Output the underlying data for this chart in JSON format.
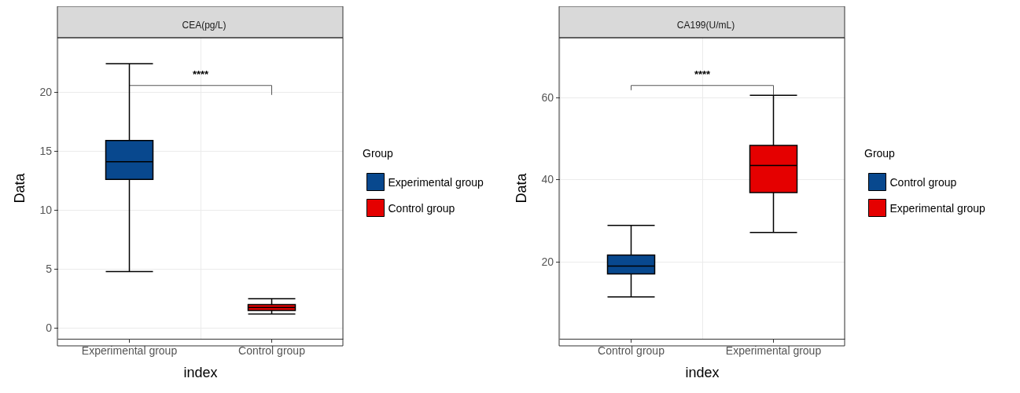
{
  "chart_data": [
    {
      "type": "box",
      "title": "CEA(pg/L)",
      "xlabel": "index",
      "ylabel": "Data",
      "legend_title": "Group",
      "legend": "right",
      "grid": true,
      "categories": [
        "Experimental group",
        "Control group"
      ],
      "ylim": [
        -0.9,
        24.6
      ],
      "yticks": [
        0,
        5,
        10,
        15,
        20
      ],
      "annotations": [
        "****"
      ],
      "series": [
        {
          "name": "Experimental group",
          "color": "#08488e",
          "boxes": [
            {
              "low": 4.8,
              "q1": 12.6,
              "median": 14.1,
              "q3": 15.9,
              "high": 22.4
            },
            null
          ]
        },
        {
          "name": "Control group",
          "color": "#e50000",
          "boxes": [
            null,
            {
              "low": 1.2,
              "q1": 1.5,
              "median": 1.75,
              "q3": 2.0,
              "high": 2.5
            }
          ]
        }
      ]
    },
    {
      "type": "box",
      "title": "CA199(U/mL)",
      "xlabel": "index",
      "ylabel": "Data",
      "legend_title": "Group",
      "legend": "right",
      "grid": true,
      "categories": [
        "Control group",
        "Experimental group"
      ],
      "ylim": [
        1.2,
        74.5
      ],
      "yticks": [
        20,
        40,
        60
      ],
      "annotations": [
        "****"
      ],
      "series": [
        {
          "name": "Control group",
          "color": "#08488e",
          "boxes": [
            {
              "low": 11.4,
              "q1": 17.0,
              "median": 18.9,
              "q3": 21.6,
              "high": 28.8
            },
            null
          ]
        },
        {
          "name": "Experimental group",
          "color": "#e50000",
          "boxes": [
            null,
            {
              "low": 27.1,
              "q1": 36.8,
              "median": 43.4,
              "q3": 48.3,
              "high": 60.5
            }
          ]
        }
      ]
    }
  ]
}
